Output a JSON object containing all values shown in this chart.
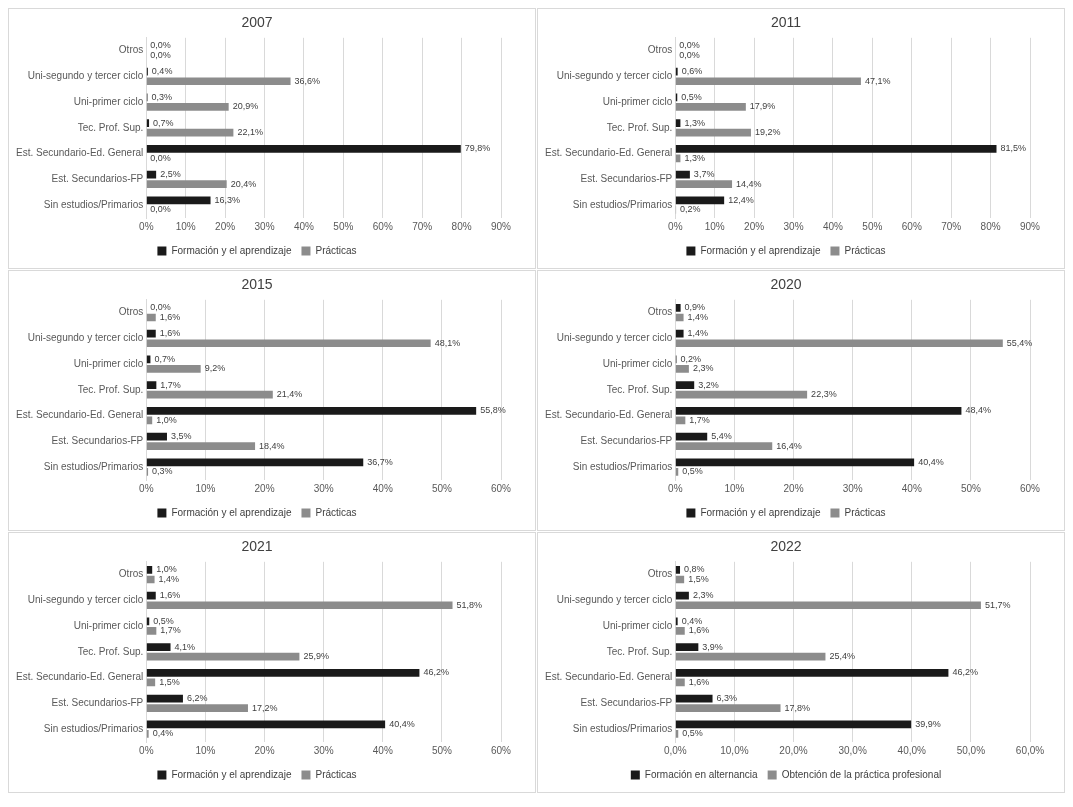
{
  "chart_data": [
    {
      "type": "bar",
      "orientation": "horizontal",
      "title": "2007",
      "categories": [
        "Otros",
        "Uni-segundo y tercer ciclo",
        "Uni-primer ciclo",
        "Tec. Prof. Sup.",
        "Est. Secundario-Ed. General",
        "Est. Secundarios-FP",
        "Sin estudios/Primarios"
      ],
      "series": [
        {
          "name": "Formación y el aprendizaje",
          "color": "#1a1a1a",
          "values": [
            0.0,
            0.4,
            0.3,
            0.7,
            79.8,
            2.5,
            16.3
          ],
          "value_labels": [
            "0,0%",
            "0,4%",
            "0,3%",
            "0,7%",
            "79,8%",
            "2,5%",
            "16,3%"
          ]
        },
        {
          "name": "Prácticas",
          "color": "#8c8c8c",
          "values": [
            0.0,
            36.6,
            20.9,
            22.1,
            0.0,
            20.4,
            0.0
          ],
          "value_labels": [
            "0,0%",
            "36,6%",
            "20,9%",
            "22,1%",
            "0,0%",
            "20,4%",
            "0,0%"
          ]
        }
      ],
      "xlim": [
        0,
        90
      ],
      "xticks": [
        {
          "value": 0,
          "label": "0%"
        },
        {
          "value": 10,
          "label": "10%"
        },
        {
          "value": 20,
          "label": "20%"
        },
        {
          "value": 30,
          "label": "30%"
        },
        {
          "value": 40,
          "label": "40%"
        },
        {
          "value": 50,
          "label": "50%"
        },
        {
          "value": 60,
          "label": "60%"
        },
        {
          "value": 70,
          "label": "70%"
        },
        {
          "value": 80,
          "label": "80%"
        },
        {
          "value": 90,
          "label": "90%"
        }
      ],
      "grid": "x",
      "legend": "bottom"
    },
    {
      "type": "bar",
      "orientation": "horizontal",
      "title": "2011",
      "categories": [
        "Otros",
        "Uni-segundo y tercer ciclo",
        "Uni-primer ciclo",
        "Tec. Prof. Sup.",
        "Est. Secundario-Ed. General",
        "Est. Secundarios-FP",
        "Sin estudios/Primarios"
      ],
      "series": [
        {
          "name": "Formación y el aprendizaje",
          "color": "#1a1a1a",
          "values": [
            0.0,
            0.6,
            0.5,
            1.3,
            81.5,
            3.7,
            12.4
          ],
          "value_labels": [
            "0,0%",
            "0,6%",
            "0,5%",
            "1,3%",
            "81,5%",
            "3,7%",
            "12,4%"
          ]
        },
        {
          "name": "Prácticas",
          "color": "#8c8c8c",
          "values": [
            0.0,
            47.1,
            17.9,
            19.2,
            1.3,
            14.4,
            0.2
          ],
          "value_labels": [
            "0,0%",
            "47,1%",
            "17,9%",
            "19,2%",
            "1,3%",
            "14,4%",
            "0,2%"
          ]
        }
      ],
      "xlim": [
        0,
        90
      ],
      "xticks": [
        {
          "value": 0,
          "label": "0%"
        },
        {
          "value": 10,
          "label": "10%"
        },
        {
          "value": 20,
          "label": "20%"
        },
        {
          "value": 30,
          "label": "30%"
        },
        {
          "value": 40,
          "label": "40%"
        },
        {
          "value": 50,
          "label": "50%"
        },
        {
          "value": 60,
          "label": "60%"
        },
        {
          "value": 70,
          "label": "70%"
        },
        {
          "value": 80,
          "label": "80%"
        },
        {
          "value": 90,
          "label": "90%"
        }
      ],
      "grid": "x",
      "legend": "bottom"
    },
    {
      "type": "bar",
      "orientation": "horizontal",
      "title": "2015",
      "categories": [
        "Otros",
        "Uni-segundo y tercer ciclo",
        "Uni-primer ciclo",
        "Tec. Prof. Sup.",
        "Est. Secundario-Ed. General",
        "Est. Secundarios-FP",
        "Sin estudios/Primarios"
      ],
      "series": [
        {
          "name": "Formación y el aprendizaje",
          "color": "#1a1a1a",
          "values": [
            0.0,
            1.6,
            0.7,
            1.7,
            55.8,
            3.5,
            36.7
          ],
          "value_labels": [
            "0,0%",
            "1,6%",
            "0,7%",
            "1,7%",
            "55,8%",
            "3,5%",
            "36,7%"
          ]
        },
        {
          "name": "Prácticas",
          "color": "#8c8c8c",
          "values": [
            1.6,
            48.1,
            9.2,
            21.4,
            1.0,
            18.4,
            0.3
          ],
          "value_labels": [
            "1,6%",
            "48,1%",
            "9,2%",
            "21,4%",
            "1,0%",
            "18,4%",
            "0,3%"
          ]
        }
      ],
      "xlim": [
        0,
        60
      ],
      "xticks": [
        {
          "value": 0,
          "label": "0%"
        },
        {
          "value": 10,
          "label": "10%"
        },
        {
          "value": 20,
          "label": "20%"
        },
        {
          "value": 30,
          "label": "30%"
        },
        {
          "value": 40,
          "label": "40%"
        },
        {
          "value": 50,
          "label": "50%"
        },
        {
          "value": 60,
          "label": "60%"
        }
      ],
      "grid": "x",
      "legend": "bottom"
    },
    {
      "type": "bar",
      "orientation": "horizontal",
      "title": "2020",
      "categories": [
        "Otros",
        "Uni-segundo y tercer ciclo",
        "Uni-primer ciclo",
        "Tec. Prof. Sup.",
        "Est. Secundario-Ed. General",
        "Est. Secundarios-FP",
        "Sin estudios/Primarios"
      ],
      "series": [
        {
          "name": "Formación y el aprendizaje",
          "color": "#1a1a1a",
          "values": [
            0.9,
            1.4,
            0.2,
            3.2,
            48.4,
            5.4,
            40.4
          ],
          "value_labels": [
            "0,9%",
            "1,4%",
            "0,2%",
            "3,2%",
            "48,4%",
            "5,4%",
            "40,4%"
          ]
        },
        {
          "name": "Prácticas",
          "color": "#8c8c8c",
          "values": [
            1.4,
            55.4,
            2.3,
            22.3,
            1.7,
            16.4,
            0.5
          ],
          "value_labels": [
            "1,4%",
            "55,4%",
            "2,3%",
            "22,3%",
            "1,7%",
            "16,4%",
            "0,5%"
          ]
        }
      ],
      "xlim": [
        0,
        60
      ],
      "xticks": [
        {
          "value": 0,
          "label": "0%"
        },
        {
          "value": 10,
          "label": "10%"
        },
        {
          "value": 20,
          "label": "20%"
        },
        {
          "value": 30,
          "label": "30%"
        },
        {
          "value": 40,
          "label": "40%"
        },
        {
          "value": 50,
          "label": "50%"
        },
        {
          "value": 60,
          "label": "60%"
        }
      ],
      "grid": "x",
      "legend": "bottom"
    },
    {
      "type": "bar",
      "orientation": "horizontal",
      "title": "2021",
      "categories": [
        "Otros",
        "Uni-segundo y tercer ciclo",
        "Uni-primer ciclo",
        "Tec. Prof. Sup.",
        "Est. Secundario-Ed. General",
        "Est. Secundarios-FP",
        "Sin estudios/Primarios"
      ],
      "series": [
        {
          "name": "Formación y el aprendizaje",
          "color": "#1a1a1a",
          "values": [
            1.0,
            1.6,
            0.5,
            4.1,
            46.2,
            6.2,
            40.4
          ],
          "value_labels": [
            "1,0%",
            "1,6%",
            "0,5%",
            "4,1%",
            "46,2%",
            "6,2%",
            "40,4%"
          ]
        },
        {
          "name": "Prácticas",
          "color": "#8c8c8c",
          "values": [
            1.4,
            51.8,
            1.7,
            25.9,
            1.5,
            17.2,
            0.4
          ],
          "value_labels": [
            "1,4%",
            "51,8%",
            "1,7%",
            "25,9%",
            "1,5%",
            "17,2%",
            "0,4%"
          ]
        }
      ],
      "xlim": [
        0,
        60
      ],
      "xticks": [
        {
          "value": 0,
          "label": "0%"
        },
        {
          "value": 10,
          "label": "10%"
        },
        {
          "value": 20,
          "label": "20%"
        },
        {
          "value": 30,
          "label": "30%"
        },
        {
          "value": 40,
          "label": "40%"
        },
        {
          "value": 50,
          "label": "50%"
        },
        {
          "value": 60,
          "label": "60%"
        }
      ],
      "grid": "x",
      "legend": "bottom"
    },
    {
      "type": "bar",
      "orientation": "horizontal",
      "title": "2022",
      "categories": [
        "Otros",
        "Uni-segundo y tercer ciclo",
        "Uni-primer ciclo",
        "Tec. Prof. Sup.",
        "Est. Secundario-Ed. General",
        "Est. Secundarios-FP",
        "Sin estudios/Primarios"
      ],
      "series": [
        {
          "name": "Formación en alternancia",
          "color": "#1a1a1a",
          "values": [
            0.8,
            2.3,
            0.4,
            3.9,
            46.2,
            6.3,
            39.9
          ],
          "value_labels": [
            "0,8%",
            "2,3%",
            "0,4%",
            "3,9%",
            "46,2%",
            "6,3%",
            "39,9%"
          ]
        },
        {
          "name": "Obtención de la práctica profesional",
          "color": "#8c8c8c",
          "values": [
            1.5,
            51.7,
            1.6,
            25.4,
            1.6,
            17.8,
            0.5
          ],
          "value_labels": [
            "1,5%",
            "51,7%",
            "1,6%",
            "25,4%",
            "1,6%",
            "17,8%",
            "0,5%"
          ]
        }
      ],
      "xlim": [
        0,
        60
      ],
      "xticks": [
        {
          "value": 0,
          "label": "0,0%"
        },
        {
          "value": 10,
          "label": "10,0%"
        },
        {
          "value": 20,
          "label": "20,0%"
        },
        {
          "value": 30,
          "label": "30,0%"
        },
        {
          "value": 40,
          "label": "40,0%"
        },
        {
          "value": 50,
          "label": "50,0%"
        },
        {
          "value": 60,
          "label": "60,0%"
        }
      ],
      "grid": "x",
      "legend": "bottom"
    }
  ]
}
